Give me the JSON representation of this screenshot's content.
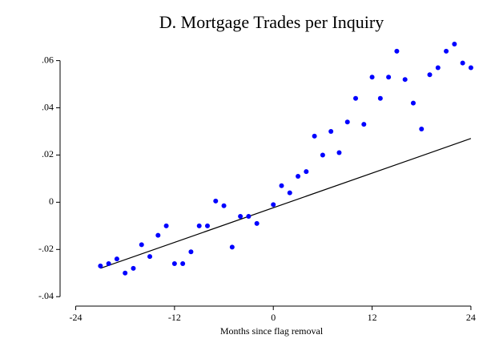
{
  "chart_data": {
    "type": "scatter",
    "title": "D. Mortgage Trades per Inquiry",
    "xlabel": "Months since flag removal",
    "x": [
      -21,
      -20,
      -19,
      -18,
      -17,
      -16,
      -15,
      -14,
      -13,
      -12,
      -11,
      -10,
      -9,
      -8,
      -7,
      -6,
      -5,
      -4,
      -3,
      -2,
      0,
      1,
      2,
      3,
      4,
      5,
      6,
      7,
      8,
      9,
      10,
      11,
      12,
      13,
      14,
      15,
      16,
      17,
      18,
      19,
      20,
      21,
      22,
      23,
      24
    ],
    "values": [
      -0.027,
      -0.026,
      -0.024,
      -0.03,
      -0.028,
      -0.018,
      -0.023,
      -0.014,
      -0.01,
      -0.026,
      -0.026,
      -0.021,
      -0.01,
      -0.01,
      0.0005,
      -0.0015,
      -0.019,
      -0.006,
      -0.006,
      -0.009,
      -0.001,
      0.007,
      0.004,
      0.011,
      0.013,
      0.028,
      0.02,
      0.03,
      0.021,
      0.034,
      0.044,
      0.033,
      0.053,
      0.044,
      0.053,
      0.064,
      0.052,
      0.042,
      0.031,
      0.054,
      0.057,
      0.064,
      0.067,
      0.059,
      0.057
    ],
    "color": "#0000ff",
    "fit": {
      "x": [
        -21,
        24
      ],
      "values": [
        -0.028,
        0.027
      ],
      "color": "#000000"
    },
    "xlim": [
      -25.9,
      24.3
    ],
    "ylim": [
      -0.044,
      0.067
    ],
    "xticks": [
      -24,
      -12,
      0,
      12,
      24
    ],
    "yticks": [
      {
        "value": -0.04,
        "label": "-.04"
      },
      {
        "value": -0.02,
        "label": "-.02"
      },
      {
        "value": 0,
        "label": "0"
      },
      {
        "value": 0.02,
        "label": ".02"
      },
      {
        "value": 0.04,
        "label": ".04"
      },
      {
        "value": 0.06,
        "label": ".06"
      }
    ]
  }
}
